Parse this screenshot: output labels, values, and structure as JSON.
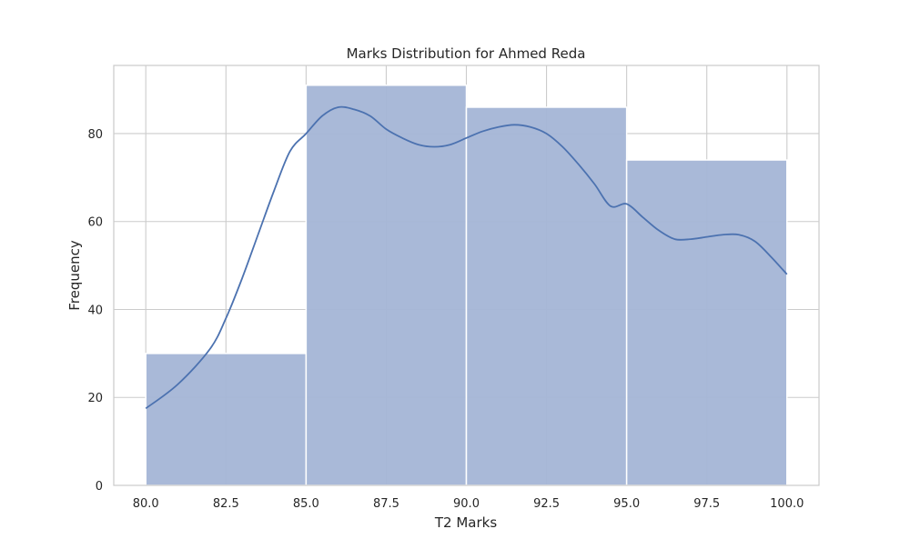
{
  "chart_data": {
    "type": "bar",
    "title": "Marks Distribution for Ahmed Reda",
    "xlabel": "T2 Marks",
    "ylabel": "Frequency",
    "xlim": [
      79,
      101
    ],
    "ylim": [
      0,
      95.5
    ],
    "x_ticks": [
      80.0,
      82.5,
      85.0,
      87.5,
      90.0,
      92.5,
      95.0,
      97.5,
      100.0
    ],
    "x_tick_labels": [
      "80.0",
      "82.5",
      "85.0",
      "87.5",
      "90.0",
      "92.5",
      "95.0",
      "97.5",
      "100.0"
    ],
    "y_ticks": [
      0,
      20,
      40,
      60,
      80
    ],
    "y_tick_labels": [
      "0",
      "20",
      "40",
      "60",
      "80"
    ],
    "bins": [
      {
        "start": 80,
        "end": 85,
        "count": 30
      },
      {
        "start": 85,
        "end": 90,
        "count": 91
      },
      {
        "start": 90,
        "end": 95,
        "count": 86
      },
      {
        "start": 95,
        "end": 100,
        "count": 74
      }
    ],
    "kde": {
      "x": [
        80,
        81,
        82,
        82.5,
        83,
        83.5,
        84,
        84.5,
        85,
        85.5,
        86,
        86.5,
        87,
        87.5,
        88,
        88.5,
        89,
        89.5,
        90,
        90.5,
        91,
        91.5,
        92,
        92.5,
        93,
        93.5,
        94,
        94.5,
        95,
        95.5,
        96,
        96.5,
        97,
        97.5,
        98,
        98.5,
        99,
        99.5,
        100
      ],
      "y": [
        17.5,
        23,
        31,
        38,
        47,
        57,
        67,
        76,
        80,
        84,
        86,
        85.5,
        84,
        81,
        79,
        77.5,
        77,
        77.5,
        79,
        80.5,
        81.5,
        82,
        81.5,
        80,
        77,
        73,
        68.5,
        63.5,
        64,
        61,
        58,
        56,
        56,
        56.5,
        57,
        57,
        55.5,
        52,
        48
      ]
    },
    "grid": true,
    "legend": "none",
    "colors": {
      "bar_fill": "#a4b5d6",
      "bar_edge": "#ffffff",
      "line": "#4c72b0",
      "grid": "#cccccc",
      "frame": "#cccccc",
      "text": "#262626"
    }
  }
}
